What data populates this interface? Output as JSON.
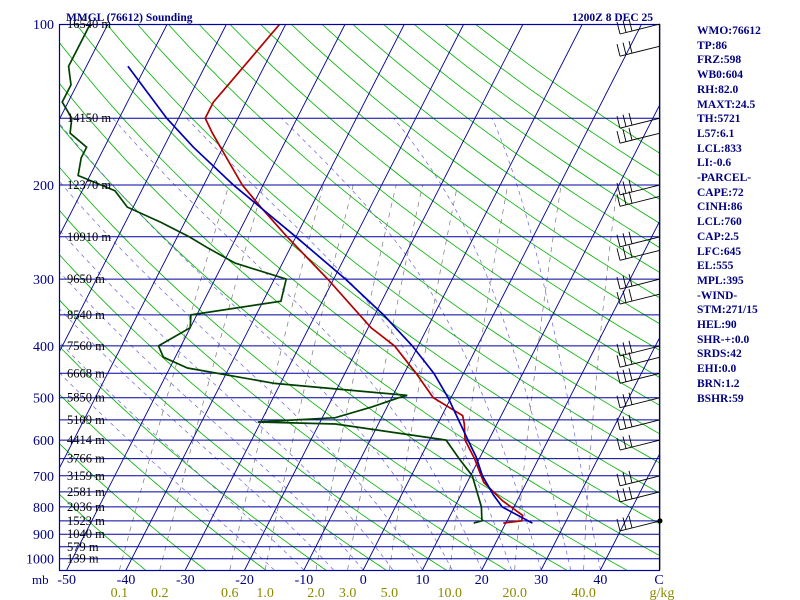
{
  "chart_data": {
    "type": "skew-t",
    "title": "MMGL (76612) Sounding",
    "valid_time": "1200Z  8 DEC 25",
    "pressure_axis_unit": "mb",
    "pressure_ticks": [
      100,
      200,
      300,
      400,
      500,
      600,
      700,
      800,
      900,
      1000
    ],
    "height_levels": [
      {
        "p": 100,
        "label": "16540 m"
      },
      {
        "p": 150,
        "label": "14150 m"
      },
      {
        "p": 200,
        "label": "12370 m"
      },
      {
        "p": 250,
        "label": "10910 m"
      },
      {
        "p": 300,
        "label": "9650 m"
      },
      {
        "p": 350,
        "label": "8540 m"
      },
      {
        "p": 400,
        "label": "7560 m"
      },
      {
        "p": 450,
        "label": "6668 m"
      },
      {
        "p": 500,
        "label": "5850 m"
      },
      {
        "p": 550,
        "label": "5109 m"
      },
      {
        "p": 600,
        "label": "4414 m"
      },
      {
        "p": 650,
        "label": "3766 m"
      },
      {
        "p": 700,
        "label": "3159 m"
      },
      {
        "p": 750,
        "label": "2581 m"
      },
      {
        "p": 800,
        "label": "2036 m"
      },
      {
        "p": 850,
        "label": "1523 m"
      },
      {
        "p": 900,
        "label": "1040 m"
      },
      {
        "p": 950,
        "label": "579 m"
      },
      {
        "p": 1000,
        "label": "139 m"
      }
    ],
    "temperature_ticks": [
      "-50",
      "-40",
      "-30",
      "-20",
      "-10",
      "0",
      "10",
      "20",
      "30",
      "40"
    ],
    "temperature_label_end": "C",
    "mixing_ratio_ticks": [
      "0.1",
      "0.2",
      "0.6",
      "1.0",
      "2.0",
      "3.0",
      "5.0",
      "10.0",
      "20.0",
      "40.0"
    ],
    "mixing_ratio_unit": "g/kg",
    "mixing_ratio_values": [
      0.1,
      0.2,
      0.6,
      1.0,
      2.0,
      3.0,
      5.0,
      10.0,
      20.0,
      40.0
    ],
    "series": [
      {
        "key": "temperature",
        "color": "#b00000",
        "points": [
          [
            858,
            19.6
          ],
          [
            850,
            22.5
          ],
          [
            830,
            22.2
          ],
          [
            780,
            17.6
          ],
          [
            720,
            12.8
          ],
          [
            700,
            11.8
          ],
          [
            650,
            9.2
          ],
          [
            600,
            6.0
          ],
          [
            560,
            4.5
          ],
          [
            540,
            3.5
          ],
          [
            500,
            -3.0
          ],
          [
            450,
            -8.0
          ],
          [
            400,
            -14.0
          ],
          [
            370,
            -19.5
          ],
          [
            300,
            -31.0
          ],
          [
            250,
            -41.5
          ],
          [
            220,
            -48.5
          ],
          [
            200,
            -53.5
          ],
          [
            180,
            -58.0
          ],
          [
            160,
            -63.0
          ],
          [
            150,
            -65.5
          ],
          [
            140,
            -65.5
          ],
          [
            130,
            -64.5
          ],
          [
            100,
            -61.0
          ]
        ]
      },
      {
        "key": "dewpoint",
        "color": "#004000",
        "points": [
          [
            858,
            14.6
          ],
          [
            850,
            15.8
          ],
          [
            800,
            14.5
          ],
          [
            700,
            10.3
          ],
          [
            650,
            6.6
          ],
          [
            600,
            2.8
          ],
          [
            560,
            -17.2
          ],
          [
            555,
            -30.5
          ],
          [
            545,
            -17.8
          ],
          [
            520,
            -12.5
          ],
          [
            500,
            -8.8
          ],
          [
            495,
            -7.6
          ],
          [
            470,
            -31.0
          ],
          [
            440,
            -47.0
          ],
          [
            420,
            -52.0
          ],
          [
            400,
            -53.8
          ],
          [
            370,
            -50.0
          ],
          [
            350,
            -51.0
          ],
          [
            330,
            -37.0
          ],
          [
            300,
            -38.0
          ],
          [
            280,
            -48.0
          ],
          [
            262,
            -54.0
          ],
          [
            250,
            -58.0
          ],
          [
            235,
            -64.0
          ],
          [
            220,
            -71.0
          ],
          [
            205,
            -74.5
          ],
          [
            192,
            -82.0
          ],
          [
            178,
            -83.0
          ],
          [
            170,
            -83.0
          ],
          [
            160,
            -87.0
          ],
          [
            150,
            -88.0
          ],
          [
            140,
            -91.0
          ],
          [
            130,
            -91.0
          ],
          [
            120,
            -93.0
          ],
          [
            110,
            -93.0
          ],
          [
            100,
            -93.0
          ]
        ]
      },
      {
        "key": "parcel",
        "color": "#0000b0",
        "points": [
          [
            858,
            24.5
          ],
          [
            800,
            18.0
          ],
          [
            760,
            15.5
          ],
          [
            700,
            12.0
          ],
          [
            645,
            9.3
          ],
          [
            600,
            6.5
          ],
          [
            555,
            3.5
          ],
          [
            500,
            -0.5
          ],
          [
            450,
            -5.0
          ],
          [
            400,
            -11.0
          ],
          [
            350,
            -18.5
          ],
          [
            300,
            -28.0
          ],
          [
            250,
            -40.0
          ],
          [
            200,
            -55.0
          ],
          [
            170,
            -65.0
          ],
          [
            150,
            -72.0
          ],
          [
            120,
            -83.0
          ]
        ]
      }
    ],
    "wind_pressures": [
      100,
      110,
      150,
      160,
      200,
      210,
      250,
      265,
      300,
      320,
      400,
      420,
      450,
      500,
      550,
      600,
      700,
      750,
      850
    ],
    "grid": true
  },
  "indices": [
    "WMO:76612",
    "TP:86",
    "FRZ:598",
    "WB0:604",
    "RH:82.0",
    "MAXT:24.5",
    "TH:5721",
    "L57:6.1",
    "LCL:833",
    "LI:-0.6",
    "-PARCEL-",
    "CAPE:72",
    "CINH:86",
    "LCL:760",
    "CAP:2.5",
    "LFC:645",
    "EL:555",
    "MPL:395",
    "-WIND-",
    "STM:271/15",
    "HEL:90",
    "SHR-+:0.0",
    "SRDS:42",
    "EHI:0.0",
    "BRN:1.2",
    "BSHR:59"
  ],
  "colors": {
    "frame": "#0000a0",
    "axis_text": "#000080",
    "label_text": "#000000",
    "isotherm": "#000090",
    "dry_adiabat": "#00b000",
    "moist_adiabat": "#6666dd",
    "mixing_ratio": "#7a7a7a",
    "mixing_ratio_text": "#8a8a00"
  }
}
